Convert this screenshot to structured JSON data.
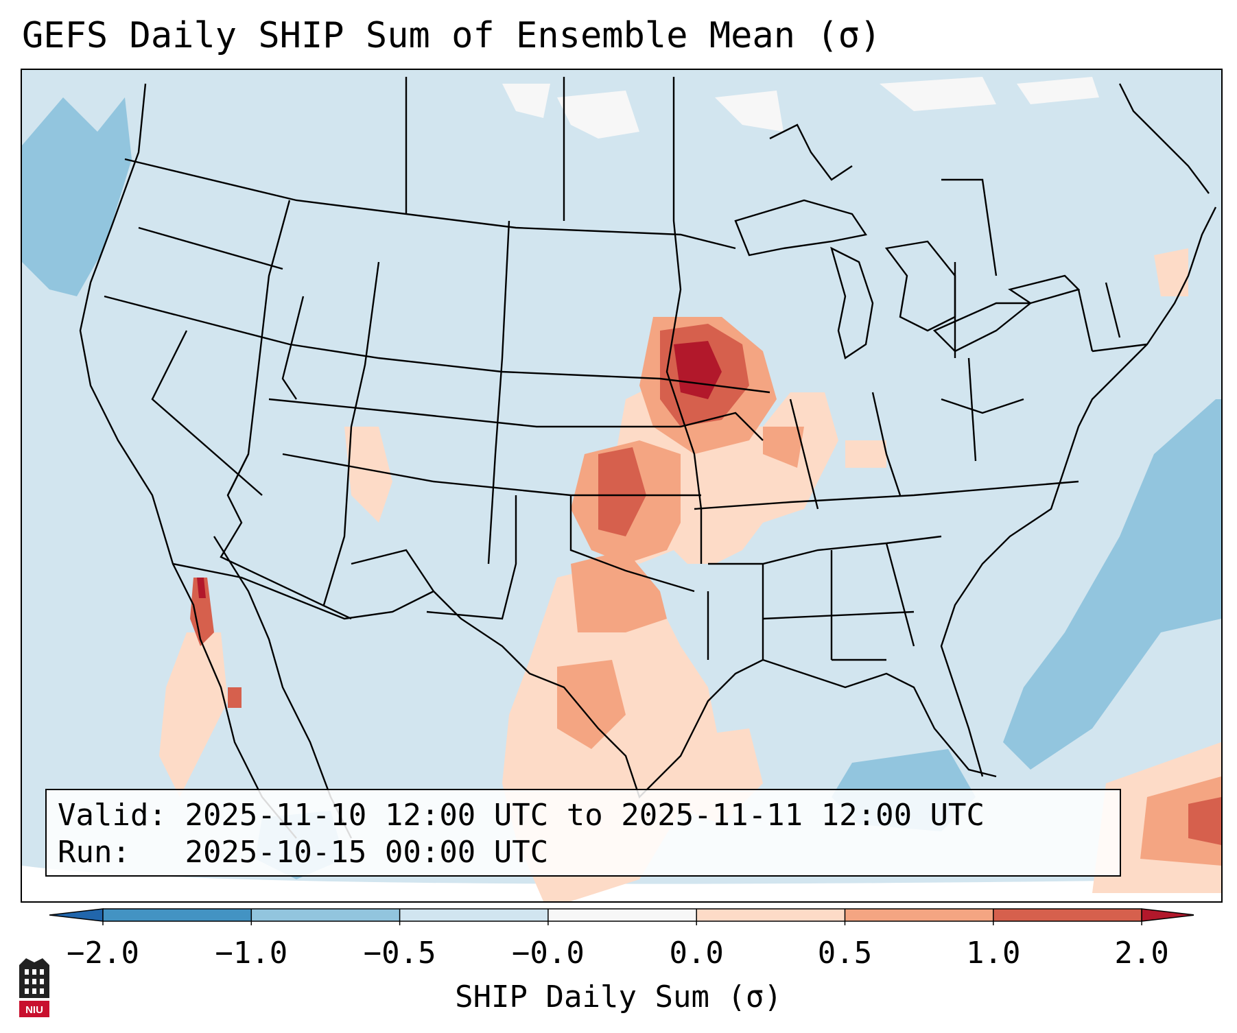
{
  "title": "GEFS Daily SHIP Sum of Ensemble Mean (σ)",
  "info": {
    "valid_label": "Valid:",
    "valid_value": "2025-11-10 12:00 UTC to 2025-11-11 12:00 UTC",
    "run_label": "Run:",
    "run_value": "2025-10-15 00:00 UTC"
  },
  "colorbar": {
    "label": "SHIP Daily Sum (σ)",
    "ticks": [
      "−2.0",
      "−1.0",
      "−0.5",
      "−0.0",
      "0.0",
      "0.5",
      "1.0",
      "2.0"
    ],
    "bin_colors": [
      "#4393c3",
      "#92c5de",
      "#d1e5f0",
      "#f7f7f7",
      "#fddbc7",
      "#f4a582",
      "#d6604d"
    ],
    "under_color": "#2166ac",
    "over_color": "#b2182b"
  },
  "map": {
    "background_color": "#d2e5ef",
    "features": [
      "state-borders",
      "coastlines",
      "country-borders",
      "great-lakes"
    ],
    "anomaly_regions": [
      {
        "region": "upper-midwest",
        "level": "strong-positive"
      },
      {
        "region": "southern-plains",
        "level": "positive"
      },
      {
        "region": "gulf-coast-texas",
        "level": "weak-positive"
      },
      {
        "region": "baja-california",
        "level": "positive"
      },
      {
        "region": "western-atlantic",
        "level": "negative"
      },
      {
        "region": "caribbean",
        "level": "positive"
      }
    ]
  },
  "logo_text": "NIU"
}
